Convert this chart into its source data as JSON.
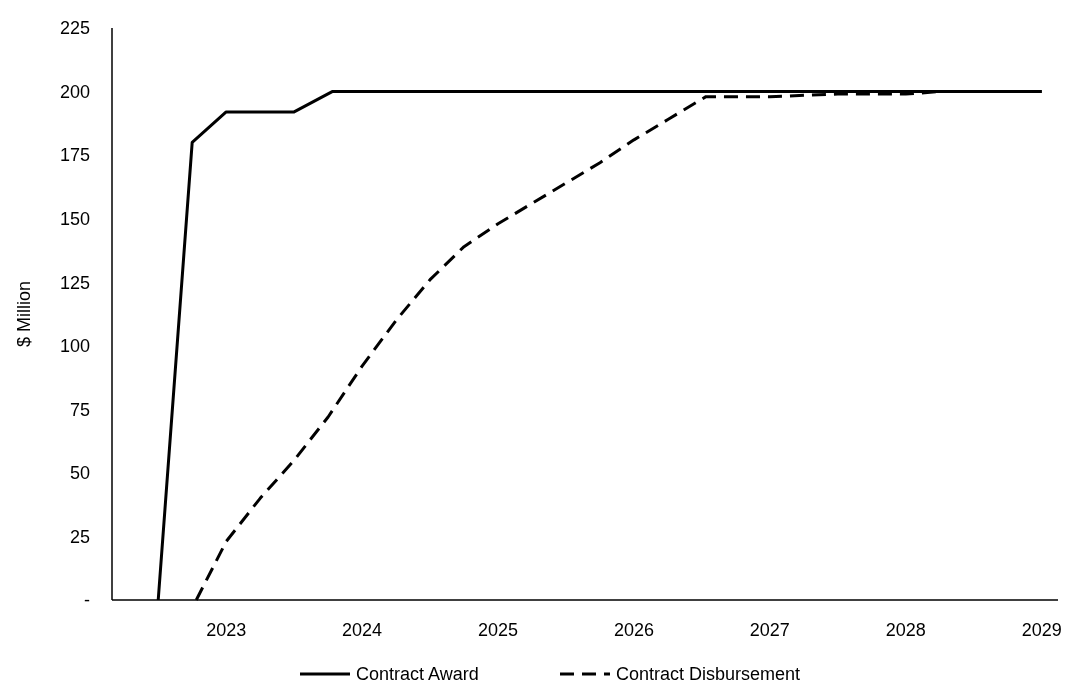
{
  "chart_data": {
    "type": "line",
    "ylabel": "$ Million",
    "xlim": [
      2022.16,
      2029.12
    ],
    "ylim": [
      0,
      225
    ],
    "xticks": [
      2023,
      2024,
      2025,
      2026,
      2027,
      2028,
      2029
    ],
    "yticks": [
      {
        "value": 0,
        "label": "-"
      },
      25,
      50,
      75,
      100,
      125,
      150,
      175,
      200,
      225
    ],
    "legend": "bottom",
    "grid": false,
    "marker": "none",
    "series": [
      {
        "name": "Contract Award",
        "color": "#000000",
        "line_style": "solid",
        "x": [
          2022.5,
          2022.75,
          2023.0,
          2023.5,
          2023.78,
          2029.0
        ],
        "values": [
          0,
          180,
          192,
          192,
          200,
          200
        ]
      },
      {
        "name": "Contract Disbursement",
        "color": "#000000",
        "line_style": "dashed",
        "x": [
          2022.78,
          2023.0,
          2023.25,
          2023.5,
          2023.75,
          2024.0,
          2024.25,
          2024.5,
          2024.75,
          2025.0,
          2025.25,
          2025.5,
          2025.75,
          2026.0,
          2026.25,
          2026.53,
          2027.0,
          2027.5,
          2028.0,
          2028.25,
          2029.0
        ],
        "values": [
          0,
          23,
          40,
          55,
          72,
          92,
          110,
          126,
          139,
          148,
          156,
          164,
          172,
          181,
          189,
          198,
          198,
          199,
          199,
          200,
          200
        ]
      }
    ]
  }
}
